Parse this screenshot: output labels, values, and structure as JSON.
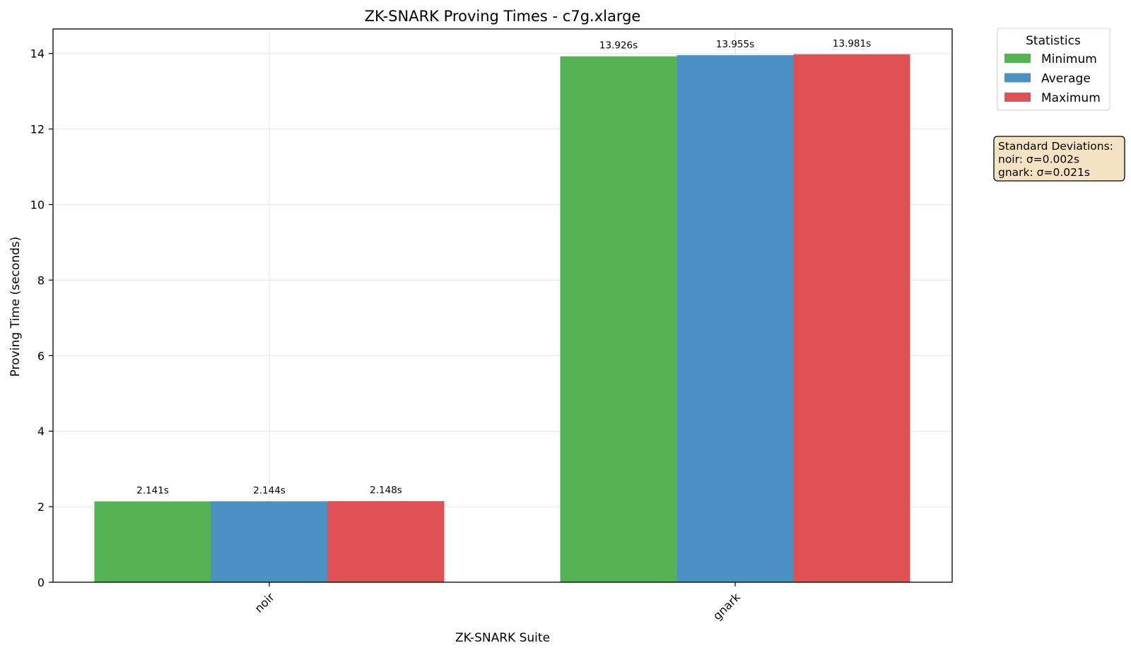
{
  "chart_data": {
    "type": "bar",
    "title": "ZK-SNARK Proving Times - c7g.xlarge",
    "xlabel": "ZK-SNARK Suite",
    "ylabel": "Proving Time (seconds)",
    "categories": [
      "noir",
      "gnark"
    ],
    "ylim": [
      0,
      14.65
    ],
    "yticks": [
      0,
      2,
      4,
      6,
      8,
      10,
      12,
      14
    ],
    "grid": true,
    "legend": {
      "title": "Statistics",
      "placement": "upper-right-outside"
    },
    "series": [
      {
        "name": "Minimum",
        "color": "#55b356",
        "values": [
          2.141,
          13.926
        ],
        "labels": [
          "2.141s",
          "13.926s"
        ]
      },
      {
        "name": "Average",
        "color": "#4b91c3",
        "values": [
          2.144,
          13.955
        ],
        "labels": [
          "2.144s",
          "13.955s"
        ]
      },
      {
        "name": "Maximum",
        "color": "#df5254",
        "values": [
          2.148,
          13.981
        ],
        "labels": [
          "2.148s",
          "13.981s"
        ]
      }
    ],
    "annotation": {
      "lines": [
        "Standard Deviations:",
        "noir: σ=0.002s",
        "gnark: σ=0.021s"
      ],
      "background": "#f5e3c3"
    }
  }
}
